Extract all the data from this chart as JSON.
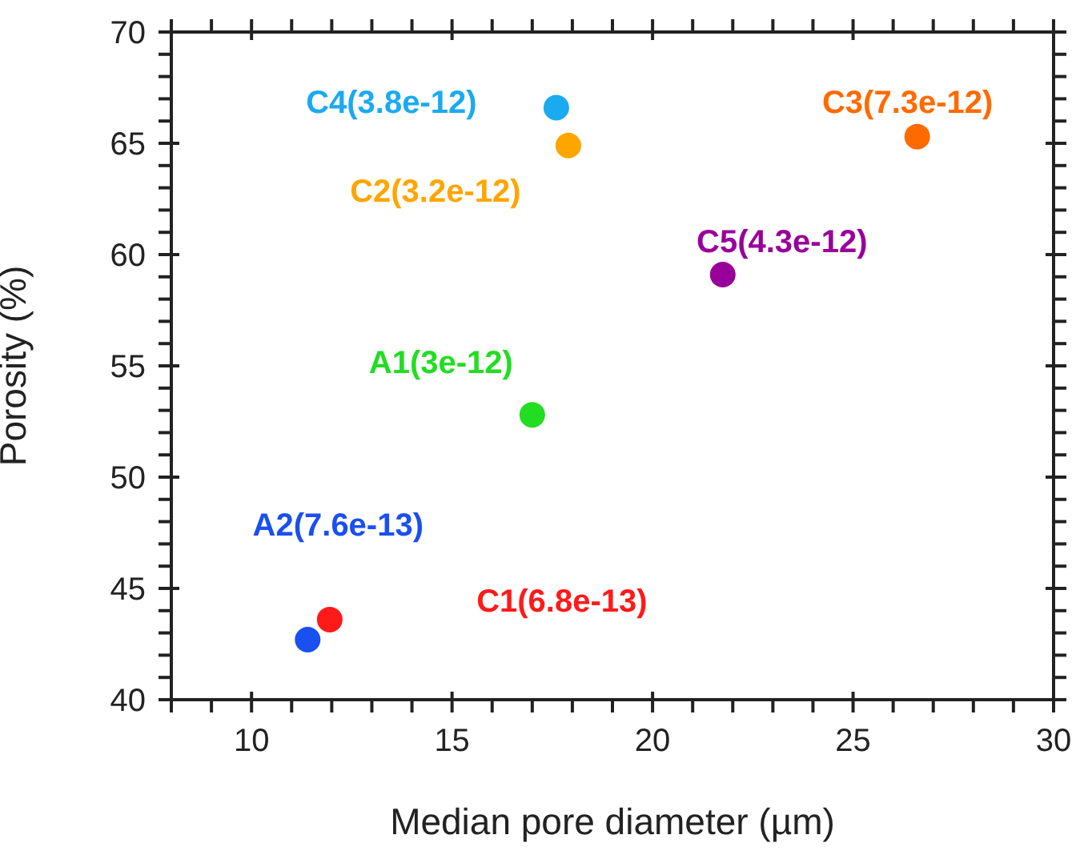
{
  "chart_data": {
    "type": "scatter",
    "xlabel": "Median pore diameter (µm)",
    "ylabel": "Porosity (%)",
    "xlim": [
      8,
      30
    ],
    "ylim": [
      40,
      70
    ],
    "xticks": [
      {
        "value": 8,
        "label": null
      },
      {
        "value": 9,
        "label": null
      },
      10,
      {
        "value": 11,
        "label": null
      },
      {
        "value": 12,
        "label": null
      },
      {
        "value": 13,
        "label": null
      },
      {
        "value": 14,
        "label": null
      },
      15,
      {
        "value": 16,
        "label": null
      },
      {
        "value": 17,
        "label": null
      },
      {
        "value": 18,
        "label": null
      },
      {
        "value": 19,
        "label": null
      },
      20,
      {
        "value": 21,
        "label": null
      },
      {
        "value": 22,
        "label": null
      },
      {
        "value": 23,
        "label": null
      },
      {
        "value": 24,
        "label": null
      },
      25,
      {
        "value": 26,
        "label": null
      },
      {
        "value": 27,
        "label": null
      },
      {
        "value": 28,
        "label": null
      },
      {
        "value": 29,
        "label": null
      },
      30
    ],
    "yticks": [
      40,
      {
        "value": 41,
        "label": null
      },
      {
        "value": 42,
        "label": null
      },
      {
        "value": 43,
        "label": null
      },
      {
        "value": 44,
        "label": null
      },
      45,
      {
        "value": 46,
        "label": null
      },
      {
        "value": 47,
        "label": null
      },
      {
        "value": 48,
        "label": null
      },
      {
        "value": 49,
        "label": null
      },
      50,
      {
        "value": 51,
        "label": null
      },
      {
        "value": 52,
        "label": null
      },
      {
        "value": 53,
        "label": null
      },
      {
        "value": 54,
        "label": null
      },
      55,
      {
        "value": 56,
        "label": null
      },
      {
        "value": 57,
        "label": null
      },
      {
        "value": 58,
        "label": null
      },
      {
        "value": 59,
        "label": null
      },
      60,
      {
        "value": 61,
        "label": null
      },
      {
        "value": 62,
        "label": null
      },
      {
        "value": 63,
        "label": null
      },
      {
        "value": 64,
        "label": null
      },
      65,
      {
        "value": 66,
        "label": null
      },
      {
        "value": 67,
        "label": null
      },
      {
        "value": 68,
        "label": null
      },
      {
        "value": 69,
        "label": null
      },
      70
    ],
    "grid": false,
    "legend": false,
    "marker": "circle",
    "series": [
      {
        "name": "C4(3.8e-12)",
        "color": "#1aaaf0",
        "x": [
          17.6
        ],
        "values": [
          66.6
        ]
      },
      {
        "name": "C2(3.2e-12)",
        "color": "#ffa500",
        "x": [
          17.9
        ],
        "values": [
          64.9
        ]
      },
      {
        "name": "C3(7.3e-12)",
        "color": "#ff6a00",
        "x": [
          26.6
        ],
        "values": [
          65.3
        ]
      },
      {
        "name": "C5(4.3e-12)",
        "color": "#990099",
        "x": [
          21.75
        ],
        "values": [
          59.1
        ]
      },
      {
        "name": "A1(3e-12)",
        "color": "#22dd22",
        "x": [
          17.0
        ],
        "values": [
          52.8
        ]
      },
      {
        "name": "A2(7.6e-13)",
        "color": "#1a4ff0",
        "x": [
          11.4
        ],
        "values": [
          42.7
        ]
      },
      {
        "name": "C1(6.8e-13)",
        "color": "#ff1a1a",
        "x": [
          11.95
        ],
        "values": [
          43.6
        ]
      }
    ]
  }
}
